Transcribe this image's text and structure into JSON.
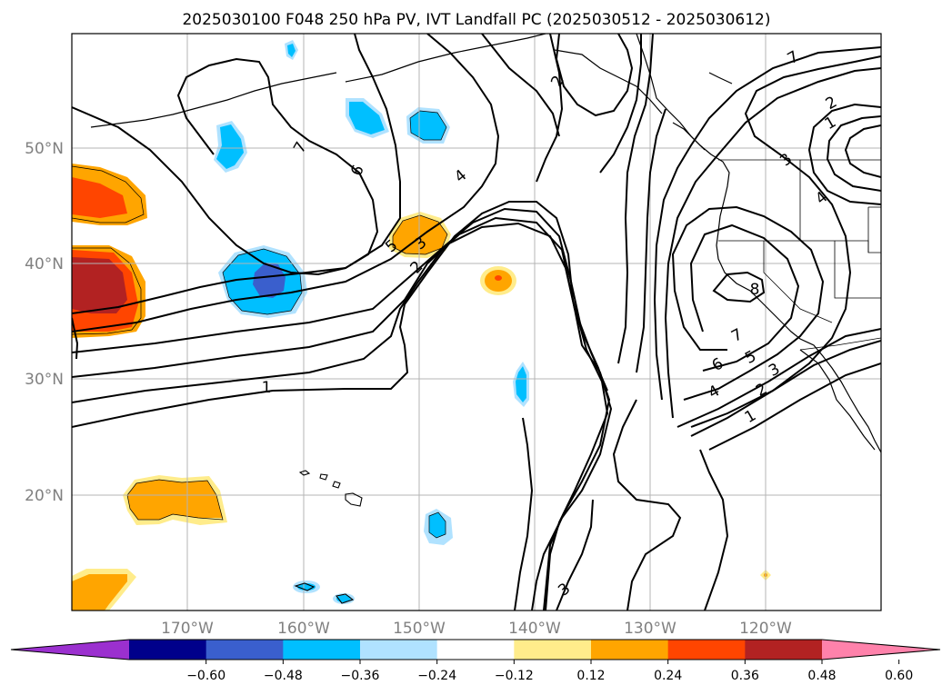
{
  "title": "2025030100 F048 250 hPa PV, IVT Landfall PC (2025030512 - 2025030612)",
  "map": {
    "lat_labels": [
      "50°N",
      "40°N",
      "30°N",
      "20°N"
    ],
    "lon_labels": [
      "170°W",
      "160°W",
      "150°W",
      "140°W",
      "130°W",
      "120°W"
    ],
    "contour_labels": [
      "1",
      "2",
      "3",
      "4",
      "5",
      "6",
      "7",
      "8"
    ],
    "gridlines": true
  },
  "colorbar": {
    "ticks": [
      "−0.60",
      "−0.48",
      "−0.36",
      "−0.24",
      "−0.12",
      "0.12",
      "0.24",
      "0.36",
      "0.48",
      "0.60"
    ],
    "colors": [
      "#9b30cf",
      "#00008b",
      "#3a5fcd",
      "#00bfff",
      "#b0e2ff",
      "#ffffff",
      "#ffec8b",
      "#ffa500",
      "#ff4500",
      "#b22222",
      "#ff82ab"
    ],
    "extend": "both"
  }
}
